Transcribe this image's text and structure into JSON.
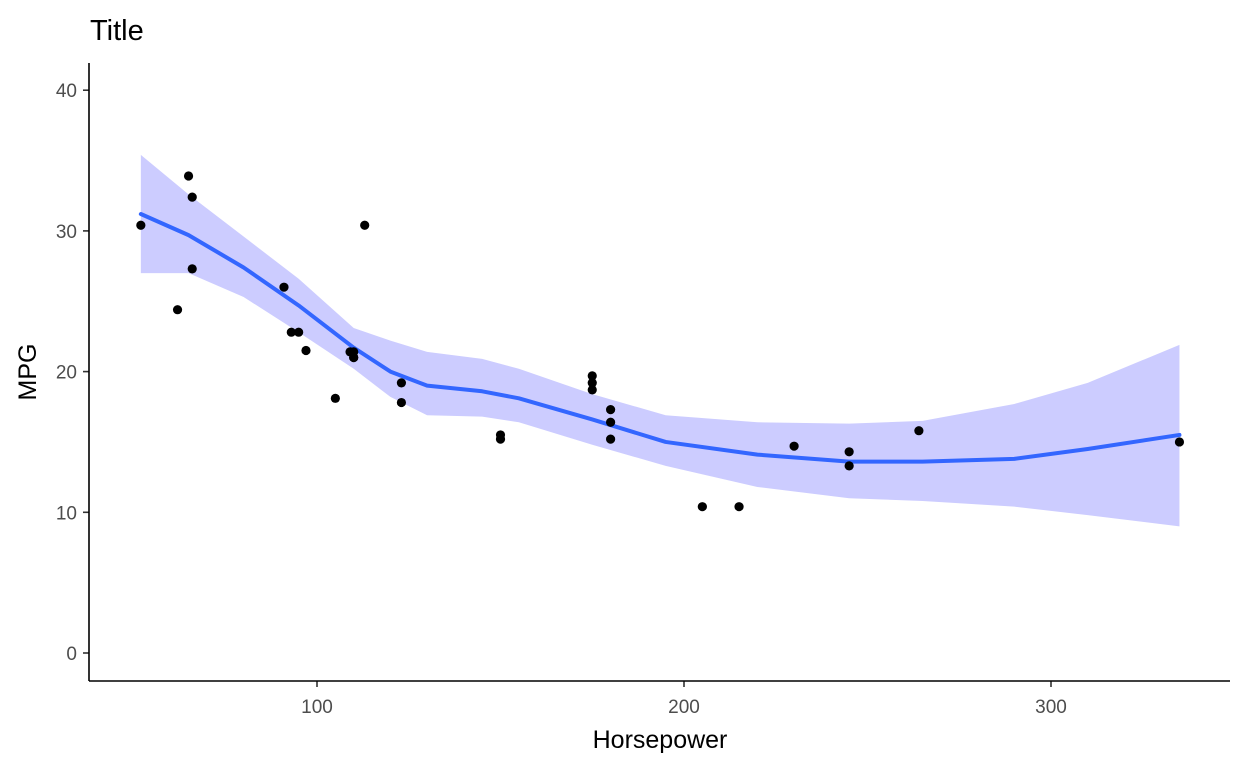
{
  "chart_data": {
    "type": "scatter",
    "title": "Title",
    "xlabel": "Horsepower",
    "ylabel": "MPG",
    "xlim": [
      40,
      340
    ],
    "ylim": [
      -2,
      42
    ],
    "xticks": [
      100,
      200,
      300
    ],
    "yticks": [
      0,
      10,
      20,
      30,
      40
    ],
    "grid": false,
    "legend": "none",
    "point_color": "#000000",
    "smooth_color": "#3366ff",
    "ribbon_color": "#ccccff",
    "points": [
      {
        "x": 110,
        "y": 21.0
      },
      {
        "x": 110,
        "y": 21.0
      },
      {
        "x": 93,
        "y": 22.8
      },
      {
        "x": 110,
        "y": 21.4
      },
      {
        "x": 175,
        "y": 18.7
      },
      {
        "x": 105,
        "y": 18.1
      },
      {
        "x": 245,
        "y": 14.3
      },
      {
        "x": 62,
        "y": 24.4
      },
      {
        "x": 95,
        "y": 22.8
      },
      {
        "x": 123,
        "y": 19.2
      },
      {
        "x": 123,
        "y": 17.8
      },
      {
        "x": 180,
        "y": 16.4
      },
      {
        "x": 180,
        "y": 17.3
      },
      {
        "x": 180,
        "y": 15.2
      },
      {
        "x": 205,
        "y": 10.4
      },
      {
        "x": 215,
        "y": 10.4
      },
      {
        "x": 230,
        "y": 14.7
      },
      {
        "x": 66,
        "y": 32.4
      },
      {
        "x": 52,
        "y": 30.4
      },
      {
        "x": 65,
        "y": 33.9
      },
      {
        "x": 97,
        "y": 21.5
      },
      {
        "x": 150,
        "y": 15.5
      },
      {
        "x": 150,
        "y": 15.2
      },
      {
        "x": 245,
        "y": 13.3
      },
      {
        "x": 175,
        "y": 19.2
      },
      {
        "x": 66,
        "y": 27.3
      },
      {
        "x": 91,
        "y": 26.0
      },
      {
        "x": 113,
        "y": 30.4
      },
      {
        "x": 264,
        "y": 15.8
      },
      {
        "x": 175,
        "y": 19.7
      },
      {
        "x": 335,
        "y": 15.0
      },
      {
        "x": 109,
        "y": 21.4
      }
    ],
    "smooth": [
      {
        "x": 52,
        "y": 31.2,
        "lo": 27.0,
        "hi": 35.4
      },
      {
        "x": 65,
        "y": 29.7,
        "lo": 27.0,
        "hi": 32.6
      },
      {
        "x": 80,
        "y": 27.4,
        "lo": 25.3,
        "hi": 29.6
      },
      {
        "x": 95,
        "y": 24.7,
        "lo": 22.8,
        "hi": 26.6
      },
      {
        "x": 110,
        "y": 21.7,
        "lo": 20.2,
        "hi": 23.1
      },
      {
        "x": 120,
        "y": 20.0,
        "lo": 18.2,
        "hi": 22.2
      },
      {
        "x": 130,
        "y": 19.0,
        "lo": 16.9,
        "hi": 21.4
      },
      {
        "x": 145,
        "y": 18.6,
        "lo": 16.8,
        "hi": 20.9
      },
      {
        "x": 155,
        "y": 18.1,
        "lo": 16.4,
        "hi": 20.2
      },
      {
        "x": 175,
        "y": 16.6,
        "lo": 14.8,
        "hi": 18.4
      },
      {
        "x": 195,
        "y": 15.0,
        "lo": 13.3,
        "hi": 16.9
      },
      {
        "x": 220,
        "y": 14.1,
        "lo": 11.8,
        "hi": 16.4
      },
      {
        "x": 245,
        "y": 13.6,
        "lo": 11.0,
        "hi": 16.3
      },
      {
        "x": 265,
        "y": 13.6,
        "lo": 10.8,
        "hi": 16.5
      },
      {
        "x": 290,
        "y": 13.8,
        "lo": 10.4,
        "hi": 17.7
      },
      {
        "x": 310,
        "y": 14.5,
        "lo": 9.8,
        "hi": 19.2
      },
      {
        "x": 335,
        "y": 15.5,
        "lo": 9.0,
        "hi": 21.9
      }
    ]
  }
}
